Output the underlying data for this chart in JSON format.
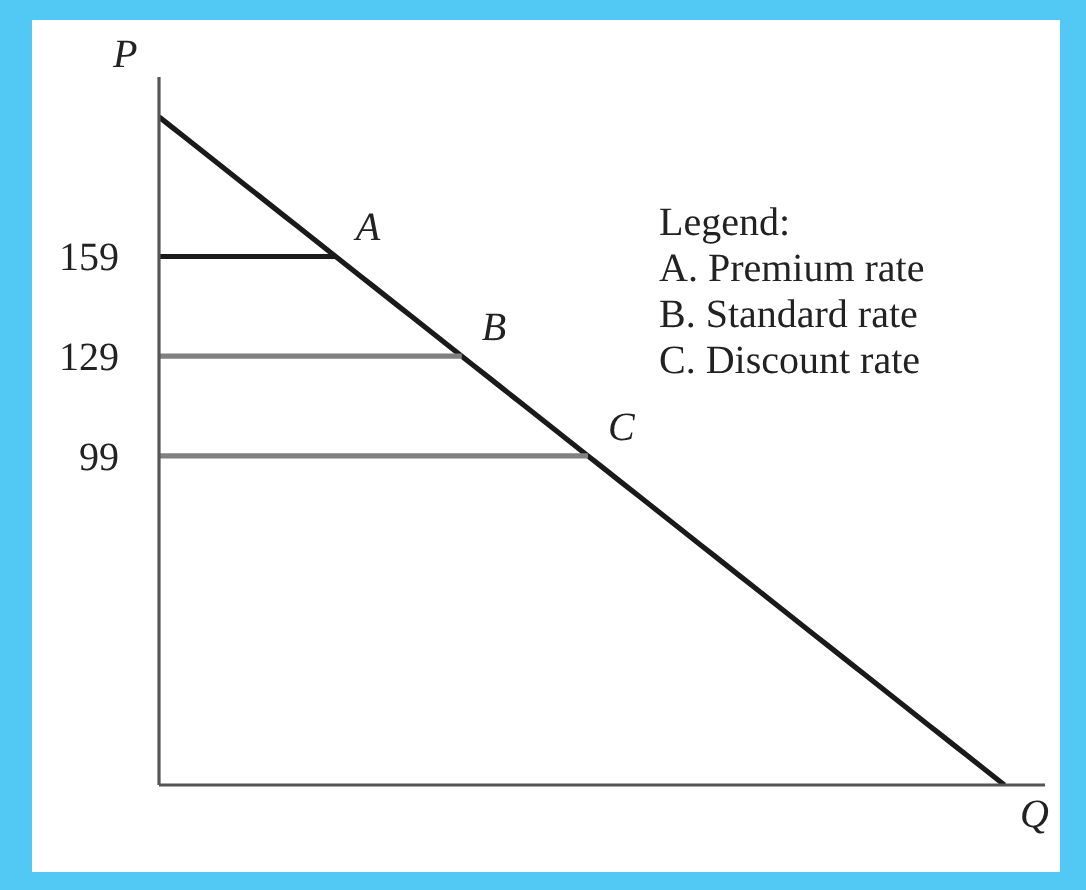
{
  "chart_data": {
    "type": "line",
    "xlabel": "Q",
    "ylabel": "P",
    "ylim": [
      0,
      213
    ],
    "yticks": [
      99,
      129,
      159
    ],
    "tick_labels": "y",
    "categories": [
      null,
      null,
      null,
      null,
      null,
      null,
      null,
      null,
      null,
      null,
      null,
      null,
      null,
      null,
      null,
      null,
      null,
      null,
      null,
      null,
      null,
      null,
      null,
      null,
      null,
      null,
      null,
      null,
      null,
      null,
      null,
      null,
      null,
      null,
      null,
      null,
      null,
      null,
      null,
      null,
      null,
      null,
      null,
      null,
      null,
      null,
      null,
      null,
      null,
      null,
      null,
      null,
      null,
      null,
      null,
      null,
      null,
      null,
      null,
      null,
      null,
      null,
      null,
      null,
      null,
      null,
      null,
      null
    ],
    "series": [
      {
        "color": "#1a1a1a",
        "values": [
          201,
          198,
          195,
          192,
          189,
          186,
          183,
          180,
          177,
          174,
          171,
          168,
          165,
          162,
          159,
          156,
          153,
          150,
          147,
          144,
          141,
          138,
          135,
          132,
          129,
          126,
          123,
          120,
          117,
          114,
          111,
          108,
          105,
          102,
          99,
          96,
          93,
          90,
          87,
          84,
          81,
          78,
          75,
          72,
          69,
          66,
          63,
          60,
          57,
          54,
          51,
          48,
          45,
          42,
          39,
          36,
          33,
          30,
          27,
          24,
          21,
          18,
          15,
          12,
          9,
          6,
          3,
          0
        ]
      },
      {
        "name": "A",
        "color": "#1a1a1a",
        "values": [
          159,
          159,
          159,
          159,
          159,
          159,
          159,
          159,
          159,
          159,
          159,
          159,
          159,
          159,
          159,
          null,
          null,
          null,
          null,
          null,
          null,
          null,
          null,
          null,
          null,
          null,
          null,
          null,
          null,
          null,
          null,
          null,
          null,
          null,
          null,
          null,
          null,
          null,
          null,
          null,
          null,
          null,
          null,
          null,
          null,
          null,
          null,
          null,
          null,
          null,
          null,
          null,
          null,
          null,
          null,
          null,
          null,
          null,
          null,
          null,
          null,
          null,
          null,
          null,
          null,
          null,
          null,
          null
        ]
      },
      {
        "name": "B",
        "color": "#808080",
        "values": [
          129,
          129,
          129,
          129,
          129,
          129,
          129,
          129,
          129,
          129,
          129,
          129,
          129,
          129,
          129,
          129,
          129,
          129,
          129,
          129,
          129,
          129,
          129,
          129,
          129,
          null,
          null,
          null,
          null,
          null,
          null,
          null,
          null,
          null,
          null,
          null,
          null,
          null,
          null,
          null,
          null,
          null,
          null,
          null,
          null,
          null,
          null,
          null,
          null,
          null,
          null,
          null,
          null,
          null,
          null,
          null,
          null,
          null,
          null,
          null,
          null,
          null,
          null,
          null,
          null,
          null,
          null,
          null
        ]
      },
      {
        "name": "C",
        "color": "#808080",
        "values": [
          99,
          99,
          99,
          99,
          99,
          99,
          99,
          99,
          99,
          99,
          99,
          99,
          99,
          99,
          99,
          99,
          99,
          99,
          99,
          99,
          99,
          99,
          99,
          99,
          99,
          99,
          99,
          99,
          99,
          99,
          99,
          99,
          99,
          99,
          99,
          null,
          null,
          null,
          null,
          null,
          null,
          null,
          null,
          null,
          null,
          null,
          null,
          null,
          null,
          null,
          null,
          null,
          null,
          null,
          null,
          null,
          null,
          null,
          null,
          null,
          null,
          null,
          null,
          null,
          null,
          null,
          null,
          null
        ]
      }
    ],
    "annotations": [
      "Legend:",
      "A. Premium rate",
      "B. Standard rate",
      "C. Discount rate"
    ]
  }
}
